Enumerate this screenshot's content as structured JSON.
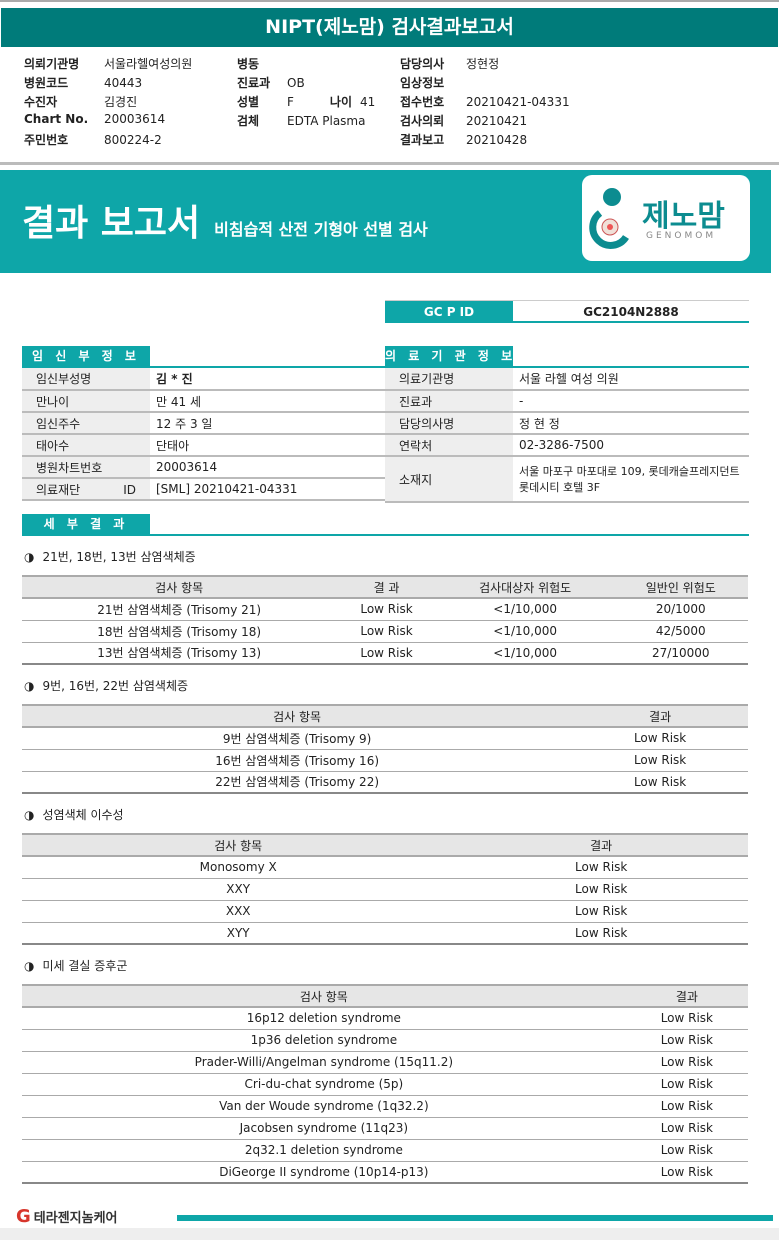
{
  "title": "NIPT(제노맘) 검사결과보고서",
  "header": [
    {
      "label": "의뢰기관명",
      "value": "서울라헬여성의원"
    },
    {
      "label": "병원코드",
      "value": "40443"
    },
    {
      "label": "수진자",
      "value": "김경진"
    },
    {
      "label": "Chart No.",
      "value": "20003614"
    },
    {
      "label": "주민번호",
      "value": "800224-2"
    },
    {
      "label": "병동",
      "value": ""
    },
    {
      "label": "진료과",
      "value": "OB"
    },
    {
      "label": "성별",
      "value": "F"
    },
    {
      "label": "검체",
      "value": "EDTA Plasma"
    },
    {
      "label": "나이",
      "value": "41"
    },
    {
      "label": "담당의사",
      "value": "정현정"
    },
    {
      "label": "임상정보",
      "value": ""
    },
    {
      "label": "접수번호",
      "value": "20210421-04331"
    },
    {
      "label": "검사의뢰",
      "value": "20210421"
    },
    {
      "label": "결과보고",
      "value": "20210428"
    }
  ],
  "banner": {
    "title": "결과 보고서",
    "subtitle": "비침습적 산전 기형아 선별 검사",
    "logo_kr": "제노맘",
    "logo_en": "GENOMOM"
  },
  "gcpid": {
    "label": "GC P ID",
    "value": "GC2104N2888"
  },
  "pregnant": {
    "title": "임 신 부 정 보",
    "rows": [
      [
        "임신부성명",
        "김 * 진"
      ],
      [
        "만나이",
        "만 41 세"
      ],
      [
        "임신주수",
        "12 주 3 일"
      ],
      [
        "태아수",
        "단태아"
      ],
      [
        "병원차트번호",
        "20003614"
      ],
      [
        "의료재단 ID",
        "[SML] 20210421-04331"
      ]
    ]
  },
  "institution": {
    "title": "의 료 기 관 정 보",
    "rows": [
      [
        "의료기관명",
        "서울 라헬 여성 의원"
      ],
      [
        "진료과",
        "-"
      ],
      [
        "담당의사명",
        "정 현 정"
      ],
      [
        "연락처",
        "02-3286-7500"
      ],
      [
        "소재지",
        "서울 마포구 마포대로 109, 롯데캐슬프레지던트 롯데시티 호텔 3F"
      ]
    ]
  },
  "details_title": "세 부 결 과",
  "sections": [
    {
      "title": "21번, 18번, 13번 삼염색체증",
      "headers": [
        "검사 항목",
        "결 과",
        "검사대상자 위험도",
        "일반인 위험도"
      ],
      "rows": [
        [
          "21번 삼염색체증 (Trisomy 21)",
          "Low Risk",
          "<1/10,000",
          "20/1000"
        ],
        [
          "18번 삼염색체증 (Trisomy 18)",
          "Low Risk",
          "<1/10,000",
          "42/5000"
        ],
        [
          "13번 삼염색체증 (Trisomy 13)",
          "Low Risk",
          "<1/10,000",
          "27/10000"
        ]
      ]
    },
    {
      "title": "9번, 16번, 22번 삼염색체증",
      "headers": [
        "검사 항목",
        "결과"
      ],
      "rows": [
        [
          "9번 삼염색체증 (Trisomy 9)",
          "Low Risk"
        ],
        [
          "16번 삼염색체증 (Trisomy 16)",
          "Low Risk"
        ],
        [
          "22번 삼염색체증 (Trisomy 22)",
          "Low Risk"
        ]
      ]
    },
    {
      "title": "성염색체 이수성",
      "headers": [
        "검사 항목",
        "결과"
      ],
      "rows": [
        [
          "Monosomy X",
          "Low Risk"
        ],
        [
          "XXY",
          "Low Risk"
        ],
        [
          "XXX",
          "Low Risk"
        ],
        [
          "XYY",
          "Low Risk"
        ]
      ]
    },
    {
      "title": "미세 결실 증후군",
      "headers": [
        "검사 항목",
        "결과"
      ],
      "rows": [
        [
          "16p12 deletion syndrome",
          "Low Risk"
        ],
        [
          "1p36  deletion syndrome",
          "Low Risk"
        ],
        [
          "Prader-Willi/Angelman syndrome (15q11.2)",
          "Low Risk"
        ],
        [
          "Cri-du-chat syndrome (5p)",
          "Low Risk"
        ],
        [
          "Van der Woude syndrome (1q32.2)",
          "Low Risk"
        ],
        [
          "Jacobsen syndrome (11q23)",
          "Low Risk"
        ],
        [
          "2q32.1 deletion syndrome",
          "Low Risk"
        ],
        [
          "DiGeorge II syndrome (10p14-p13)",
          "Low Risk"
        ]
      ]
    }
  ],
  "footer": {
    "company": "테라젠지놈케어"
  },
  "colors": {
    "title_bg": "#007b7a",
    "accent": "#0ea6a8"
  }
}
